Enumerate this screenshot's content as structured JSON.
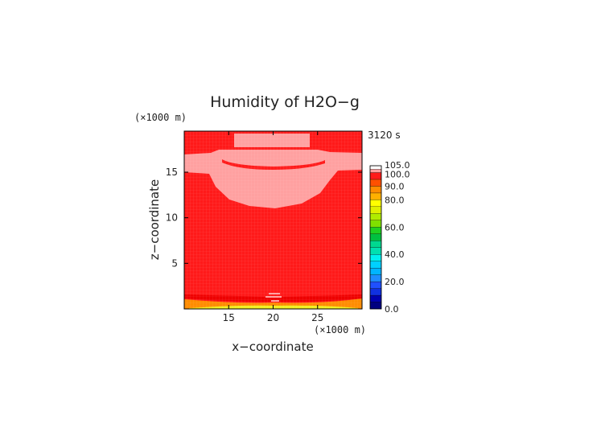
{
  "chart_data": {
    "type": "heatmap",
    "title": "Humidity of H2O−g",
    "xlabel": "x−coordinate",
    "ylabel": "z−coordinate",
    "x_unit": "(×1000 m)",
    "y_unit": "(×1000 m)",
    "time_label": "3120 s",
    "xlim": [
      10,
      30
    ],
    "ylim": [
      0,
      19.5
    ],
    "x_ticks": [
      "15",
      "20",
      "25"
    ],
    "y_ticks": [
      "5",
      "10",
      "15"
    ],
    "colorbar": {
      "range": [
        0,
        105
      ],
      "labels": [
        "105.0",
        "100.0",
        "90.0",
        "80.0",
        "60.0",
        "40.0",
        "20.0",
        "0.0"
      ]
    }
  },
  "colors": {
    "saturated": "#ff1a1a",
    "supersaturated": "#ffa0a0",
    "near_ground_orange": "#ff8c00",
    "near_ground_yellow": "#f0f020"
  }
}
